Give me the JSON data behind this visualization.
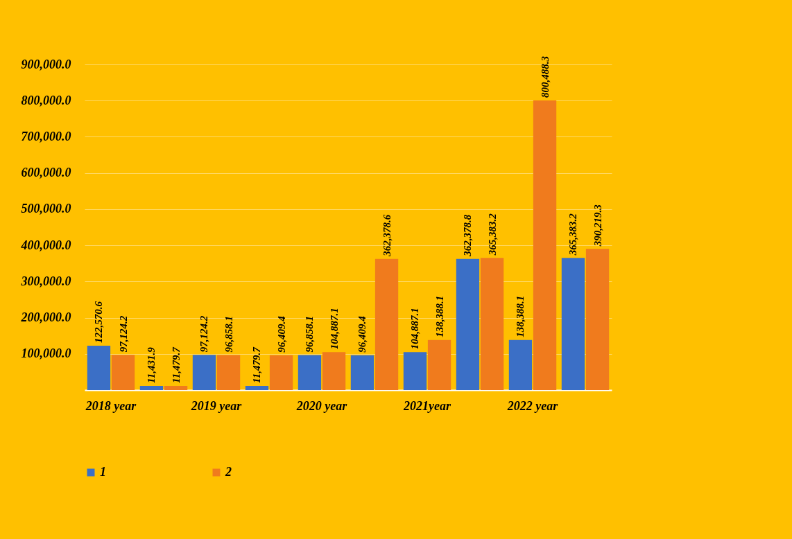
{
  "chart_data": {
    "type": "bar",
    "categories": [
      "2018 year",
      null,
      "2019 year",
      null,
      "2020 year",
      null,
      "2021year",
      null,
      "2022 year",
      null
    ],
    "series": [
      {
        "name": "1",
        "color": "#3b6fc6",
        "values": [
          122570.6,
          11431.9,
          97124.2,
          11479.7,
          96858.1,
          96409.4,
          104887.1,
          362378.8,
          138388.1,
          365383.2
        ],
        "value_labels": [
          "122,570.6",
          "11,431.9",
          "97,124.2",
          "11,479.7",
          "96,858.1",
          "96,409.4",
          "104,887.1",
          "362,378.8",
          "138,388.1",
          "365,383.2"
        ]
      },
      {
        "name": "2",
        "color": "#f07b1d",
        "values": [
          97124.2,
          11479.7,
          96858.1,
          96409.4,
          104887.1,
          362378.6,
          138388.1,
          365383.2,
          800488.3,
          390219.3
        ],
        "value_labels": [
          "97,124.2",
          "11,479.7",
          "96,858.1",
          "96,409.4",
          "104,887.1",
          "362,378.6",
          "138,388.1",
          "365,383.2",
          "800,488.3",
          "390,219.3"
        ]
      }
    ],
    "ylim": [
      0,
      900000
    ],
    "yticks": [
      {
        "value": 100000,
        "label": "100,000.0"
      },
      {
        "value": 200000,
        "label": "200,000.0"
      },
      {
        "value": 300000,
        "label": "300,000.0"
      },
      {
        "value": 400000,
        "label": "400,000.0"
      },
      {
        "value": 500000,
        "label": "500,000.0"
      },
      {
        "value": 600000,
        "label": "600,000.0"
      },
      {
        "value": 700000,
        "label": "700,000.0"
      },
      {
        "value": 800000,
        "label": "800,000.0"
      },
      {
        "value": 900000,
        "label": "900,000.0"
      }
    ],
    "grid": "y",
    "legend": "bottom left"
  }
}
